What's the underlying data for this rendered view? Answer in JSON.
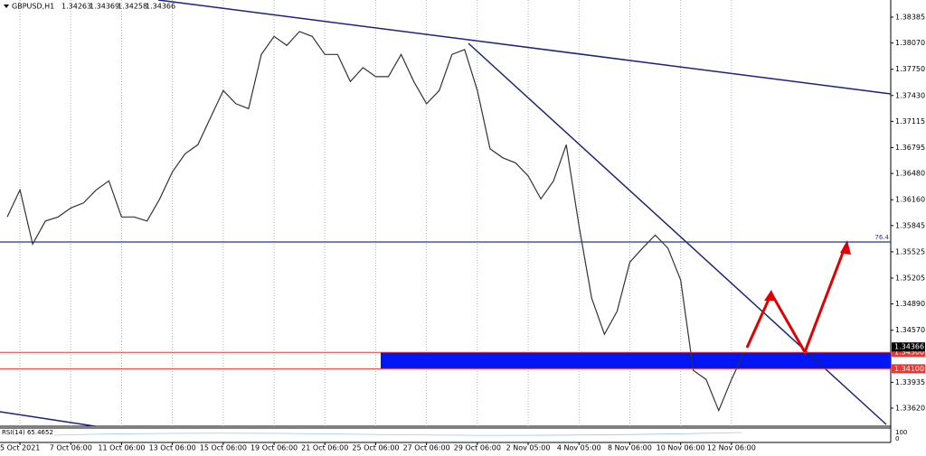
{
  "chart_data": {
    "type": "line",
    "title": "GBPUSD,H1",
    "ohlc": [
      1.34263,
      1.34369,
      1.34258,
      1.34366
    ],
    "categories": [
      null,
      "5 Oct 2021",
      null,
      null,
      null,
      "7 Oct 06:00",
      null,
      null,
      null,
      "11 Oct 06:00",
      null,
      null,
      null,
      "13 Oct 06:00",
      null,
      null,
      null,
      "15 Oct 06:00",
      null,
      null,
      null,
      "19 Oct 06:00",
      null,
      null,
      null,
      "21 Oct 06:00",
      null,
      null,
      null,
      "25 Oct 06:00",
      null,
      null,
      null,
      "27 Oct 06:00",
      null,
      null,
      null,
      "29 Oct 06:00",
      null,
      null,
      null,
      "2 Nov 05:00",
      null,
      null,
      null,
      "4 Nov 05:00",
      null,
      null,
      null,
      "8 Nov 06:00",
      null,
      null,
      null,
      "10 Nov 06:00",
      null,
      null,
      null,
      "12 Nov 06:00",
      null
    ],
    "series": [
      {
        "color": "#333333",
        "values": [
          1.3595,
          1.3628,
          1.3562,
          1.359,
          1.3595,
          1.3606,
          1.3612,
          1.3628,
          1.3639,
          1.3595,
          1.3595,
          1.359,
          1.3617,
          1.365,
          1.3672,
          1.3683,
          1.3716,
          1.3749,
          1.3733,
          1.3727,
          1.3793,
          1.3815,
          1.3804,
          1.3821,
          1.3815,
          1.3793,
          1.3793,
          1.376,
          1.3777,
          1.3766,
          1.3766,
          1.3793,
          1.376,
          1.3733,
          1.3749,
          1.3793,
          1.3799,
          1.3749,
          1.3678,
          1.3667,
          1.3661,
          1.3645,
          1.3617,
          1.3639,
          1.3683,
          1.3584,
          1.3496,
          1.3452,
          1.348,
          1.354,
          1.3557,
          1.3573,
          1.3557,
          1.3518,
          1.3408,
          1.3397,
          1.3359,
          1.3397,
          1.343
        ]
      }
    ],
    "ylim": [
      1.334,
      1.38594
    ],
    "yticks": [
      {
        "value": 1.38385,
        "label": "1.38385"
      },
      {
        "value": 1.3807,
        "label": "1.38070"
      },
      {
        "value": 1.3775,
        "label": "1.37750"
      },
      {
        "value": 1.3743,
        "label": "1.37430"
      },
      {
        "value": 1.37115,
        "label": "1.37115"
      },
      {
        "value": 1.36795,
        "label": "1.36795"
      },
      {
        "value": 1.3648,
        "label": "1.36480"
      },
      {
        "value": 1.3616,
        "label": "1.36160"
      },
      {
        "value": 1.35845,
        "label": "1.35845"
      },
      {
        "value": 1.35525,
        "label": "1.35525"
      },
      {
        "value": 1.35205,
        "label": "1.35205"
      },
      {
        "value": 1.3489,
        "label": "1.34890"
      },
      {
        "value": 1.3457,
        "label": "1.34570"
      },
      {
        "value": 1.33935,
        "label": "1.33935"
      },
      {
        "value": 1.3362,
        "label": "1.33620"
      }
    ],
    "current_price": 1.34366,
    "levels": [
      {
        "value": 1.343,
        "label": "1.34300"
      },
      {
        "value": 1.341,
        "label": "1.34100"
      }
    ],
    "fib_level": {
      "value": 1.35645,
      "label": "76.4"
    },
    "indicator": {
      "label": "RSI(14) 65.4652",
      "yticks": [
        100,
        0
      ]
    }
  }
}
